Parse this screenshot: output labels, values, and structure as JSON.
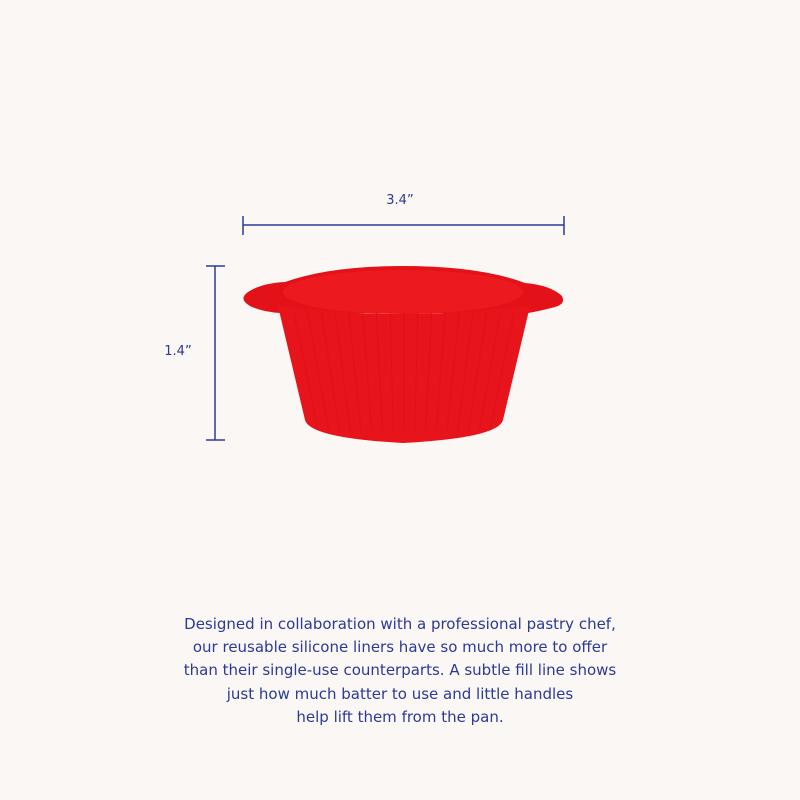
{
  "dimensions": {
    "width": "3.4”",
    "height": "1.4”"
  },
  "colors": {
    "accent": "#2b3a98",
    "product": "#e8141c",
    "background": "#faf7f4"
  },
  "description": {
    "lines": [
      "Designed in collaboration with a professional pastry chef,",
      "our reusable silicone liners have so much more to offer",
      "than their single-use counterparts. A subtle fill line shows",
      "just how much batter to use and little handles",
      "help lift them from the pan."
    ]
  }
}
